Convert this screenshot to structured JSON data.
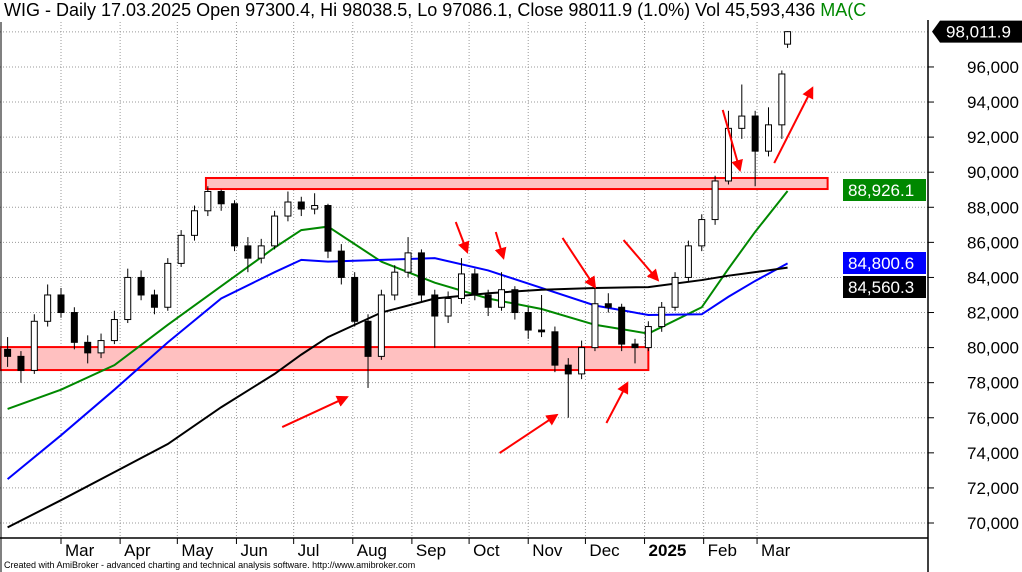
{
  "header": {
    "title": "WIG - Daily 17.03.2025 Open 97300.4, Hi 98038.5, Lo 97086.1, Close 98011.9 (1.0%) Vol 45,593,436",
    "ma_label": "MA(C"
  },
  "footer": "Created with AmiBroker - advanced charting and technical analysis software. http://www.amibroker.com",
  "chart_data": {
    "type": "candlestick",
    "symbol": "WIG",
    "ylim": [
      69150,
      99800
    ],
    "yticks": [
      "70,000",
      "72,000",
      "74,000",
      "76,000",
      "78,000",
      "80,000",
      "82,000",
      "84,000",
      "86,000",
      "88,000",
      "90,000",
      "92,000",
      "94,000",
      "96,000"
    ],
    "ytick_values": [
      70000,
      72000,
      74000,
      76000,
      78000,
      80000,
      82000,
      84000,
      86000,
      88000,
      90000,
      92000,
      94000,
      96000
    ],
    "xticks": [
      {
        "label": "Mar",
        "date": "2024-03-01"
      },
      {
        "label": "Apr",
        "date": "2024-04-01"
      },
      {
        "label": "May",
        "date": "2024-05-01"
      },
      {
        "label": "Jun",
        "date": "2024-06-01"
      },
      {
        "label": "Jul",
        "date": "2024-07-01"
      },
      {
        "label": "Aug",
        "date": "2024-08-01"
      },
      {
        "label": "Sep",
        "date": "2024-09-01"
      },
      {
        "label": "Oct",
        "date": "2024-10-01"
      },
      {
        "label": "Nov",
        "date": "2024-11-01"
      },
      {
        "label": "Dec",
        "date": "2024-12-01"
      },
      {
        "label": "2025",
        "date": "2025-01-01",
        "bold": true
      },
      {
        "label": "Feb",
        "date": "2025-02-01"
      },
      {
        "label": "Mar",
        "date": "2025-03-01"
      }
    ],
    "grid": true,
    "candles": [
      [
        "2024-02-02",
        79900,
        80600,
        78900,
        79500
      ],
      [
        "2024-02-09",
        79500,
        79800,
        78000,
        78700
      ],
      [
        "2024-02-16",
        78700,
        81900,
        78500,
        81500
      ],
      [
        "2024-02-23",
        81500,
        83600,
        81200,
        83000
      ],
      [
        "2024-03-01",
        83000,
        83400,
        81700,
        82000
      ],
      [
        "2024-03-08",
        82000,
        82300,
        79900,
        80300
      ],
      [
        "2024-03-15",
        80300,
        80700,
        79100,
        79700
      ],
      [
        "2024-03-22",
        79700,
        80800,
        79400,
        80400
      ],
      [
        "2024-03-29",
        80400,
        82100,
        80200,
        81600
      ],
      [
        "2024-04-05",
        81600,
        84500,
        81400,
        84000
      ],
      [
        "2024-04-12",
        84000,
        84400,
        82700,
        83000
      ],
      [
        "2024-04-19",
        83000,
        83300,
        81900,
        82300
      ],
      [
        "2024-04-26",
        82300,
        85100,
        82100,
        84800
      ],
      [
        "2024-05-03",
        84800,
        86700,
        84600,
        86400
      ],
      [
        "2024-05-10",
        86400,
        88100,
        86100,
        87800
      ],
      [
        "2024-05-17",
        87800,
        89200,
        87500,
        88900
      ],
      [
        "2024-05-24",
        88900,
        89000,
        87800,
        88200
      ],
      [
        "2024-05-31",
        88200,
        88400,
        85500,
        85800
      ],
      [
        "2024-06-07",
        85800,
        86300,
        84300,
        85100
      ],
      [
        "2024-06-14",
        85100,
        86200,
        84800,
        85800
      ],
      [
        "2024-06-21",
        85800,
        87800,
        85600,
        87500
      ],
      [
        "2024-06-28",
        87500,
        88900,
        87200,
        88300
      ],
      [
        "2024-07-05",
        88300,
        88600,
        87500,
        87900
      ],
      [
        "2024-07-12",
        87900,
        88800,
        87600,
        88100
      ],
      [
        "2024-07-19",
        88100,
        88200,
        85100,
        85500
      ],
      [
        "2024-07-26",
        85500,
        85900,
        83600,
        84000
      ],
      [
        "2024-08-02",
        84000,
        84300,
        81200,
        81500
      ],
      [
        "2024-08-09",
        81500,
        81900,
        77700,
        79500
      ],
      [
        "2024-08-16",
        79500,
        83300,
        79300,
        83000
      ],
      [
        "2024-08-23",
        83000,
        84700,
        82700,
        84300
      ],
      [
        "2024-08-30",
        84300,
        86300,
        84000,
        85400
      ],
      [
        "2024-09-06",
        85400,
        85600,
        82600,
        83000
      ],
      [
        "2024-09-13",
        83000,
        83300,
        80000,
        81800
      ],
      [
        "2024-09-20",
        81800,
        83200,
        81400,
        82800
      ],
      [
        "2024-09-27",
        82800,
        85100,
        82500,
        84200
      ],
      [
        "2024-10-04",
        84200,
        84500,
        82700,
        83000
      ],
      [
        "2024-10-11",
        83000,
        83300,
        81800,
        82300
      ],
      [
        "2024-10-18",
        82300,
        84300,
        82100,
        83300
      ],
      [
        "2024-10-25",
        83300,
        83500,
        81600,
        82000
      ],
      [
        "2024-11-01",
        82000,
        82300,
        80500,
        81000
      ],
      [
        "2024-11-08",
        81000,
        83000,
        80600,
        80900
      ],
      [
        "2024-11-15",
        80900,
        81200,
        78600,
        79000
      ],
      [
        "2024-11-22",
        79000,
        79400,
        76000,
        78500
      ],
      [
        "2024-11-29",
        78500,
        80400,
        78200,
        80000
      ],
      [
        "2024-12-06",
        80000,
        83400,
        79800,
        82500
      ],
      [
        "2024-12-13",
        82500,
        83100,
        82000,
        82300
      ],
      [
        "2024-12-20",
        82300,
        82500,
        79800,
        80200
      ],
      [
        "2024-12-27",
        80200,
        80500,
        79100,
        80000
      ],
      [
        "2025-01-03",
        80000,
        81500,
        79800,
        81200
      ],
      [
        "2025-01-10",
        81200,
        82600,
        80900,
        82300
      ],
      [
        "2025-01-17",
        82300,
        84300,
        82100,
        84000
      ],
      [
        "2025-01-24",
        84000,
        86100,
        83800,
        85800
      ],
      [
        "2025-01-31",
        85800,
        87600,
        85500,
        87300
      ],
      [
        "2025-02-07",
        87300,
        89800,
        87000,
        89500
      ],
      [
        "2025-02-14",
        89500,
        93500,
        89300,
        92500
      ],
      [
        "2025-02-21",
        92500,
        95000,
        91900,
        93200
      ],
      [
        "2025-02-28",
        93200,
        93500,
        89200,
        91200
      ],
      [
        "2025-03-07",
        91200,
        93700,
        90900,
        92700
      ],
      [
        "2025-03-14",
        92700,
        95800,
        91900,
        95600
      ],
      [
        "2025-03-17",
        97300.4,
        98038.5,
        97086.1,
        98011.9
      ]
    ],
    "moving_averages": [
      {
        "color": "#008800",
        "last_value": "88,926.1",
        "points": [
          [
            "2024-02-02",
            76500
          ],
          [
            "2024-03-01",
            77600
          ],
          [
            "2024-03-29",
            79000
          ],
          [
            "2024-04-26",
            81300
          ],
          [
            "2024-05-24",
            83500
          ],
          [
            "2024-06-21",
            85700
          ],
          [
            "2024-07-05",
            86700
          ],
          [
            "2024-07-19",
            86900
          ],
          [
            "2024-08-16",
            84900
          ],
          [
            "2024-09-13",
            83700
          ],
          [
            "2024-10-11",
            82800
          ],
          [
            "2024-11-08",
            82200
          ],
          [
            "2024-12-06",
            81300
          ],
          [
            "2025-01-03",
            80800
          ],
          [
            "2025-01-31",
            82300
          ],
          [
            "2025-02-14",
            84500
          ],
          [
            "2025-02-28",
            86600
          ],
          [
            "2025-03-17",
            88926.1
          ]
        ]
      },
      {
        "color": "#0000ff",
        "last_value": "84,800.6",
        "points": [
          [
            "2024-02-02",
            72500
          ],
          [
            "2024-03-01",
            75000
          ],
          [
            "2024-03-29",
            77600
          ],
          [
            "2024-04-26",
            80300
          ],
          [
            "2024-05-24",
            82800
          ],
          [
            "2024-06-21",
            84300
          ],
          [
            "2024-07-05",
            85000
          ],
          [
            "2024-07-19",
            84900
          ],
          [
            "2024-08-16",
            85000
          ],
          [
            "2024-09-13",
            85100
          ],
          [
            "2024-10-11",
            84400
          ],
          [
            "2024-11-08",
            83400
          ],
          [
            "2024-12-06",
            82400
          ],
          [
            "2025-01-03",
            81860
          ],
          [
            "2025-01-31",
            81900
          ],
          [
            "2025-02-14",
            82900
          ],
          [
            "2025-02-28",
            83800
          ],
          [
            "2025-03-17",
            84800.6
          ]
        ]
      },
      {
        "color": "#000000",
        "last_value": "84,560.3",
        "points": [
          [
            "2024-02-02",
            69750
          ],
          [
            "2024-03-01",
            71300
          ],
          [
            "2024-03-29",
            72900
          ],
          [
            "2024-04-26",
            74500
          ],
          [
            "2024-05-24",
            76600
          ],
          [
            "2024-06-21",
            78500
          ],
          [
            "2024-07-05",
            79600
          ],
          [
            "2024-07-19",
            80600
          ],
          [
            "2024-08-16",
            82000
          ],
          [
            "2024-09-13",
            82800
          ],
          [
            "2024-10-11",
            83100
          ],
          [
            "2024-11-08",
            83300
          ],
          [
            "2024-12-06",
            83400
          ],
          [
            "2025-01-03",
            83450
          ],
          [
            "2025-01-31",
            83850
          ],
          [
            "2025-02-14",
            84100
          ],
          [
            "2025-02-28",
            84300
          ],
          [
            "2025-03-17",
            84560.3
          ]
        ]
      }
    ],
    "last_price_tag": {
      "value": "98,011.9",
      "price": 98011.9,
      "color": "#000000"
    },
    "zones": [
      {
        "from": "2024-05-16",
        "to": "2025-04-07",
        "low": 89040,
        "high": 89670,
        "color": "#ffc0c0",
        "border": "#ff0000"
      },
      {
        "from": "2024-01-29",
        "to": "2025-01-03",
        "low": 78720,
        "high": 80030,
        "color": "#ffc0c0",
        "border": "#ff0000"
      }
    ],
    "arrows": [
      {
        "from": [
          "2024-06-25",
          75470
        ],
        "to": [
          "2024-07-29",
          77180
        ]
      },
      {
        "from": [
          "2024-10-17",
          73990
        ],
        "to": [
          "2024-11-16",
          76160
        ]
      },
      {
        "from": [
          "2024-12-12",
          75700
        ],
        "to": [
          "2024-12-23",
          77980
        ]
      },
      {
        "from": [
          "2024-09-24",
          87160
        ],
        "to": [
          "2024-09-30",
          85450
        ]
      },
      {
        "from": [
          "2024-10-15",
          86590
        ],
        "to": [
          "2024-10-19",
          85110
        ]
      },
      {
        "from": [
          "2024-11-19",
          86250
        ],
        "to": [
          "2024-12-06",
          83450
        ]
      },
      {
        "from": [
          "2024-12-21",
          86130
        ],
        "to": [
          "2025-01-08",
          83850
        ]
      },
      {
        "from": [
          "2025-02-11",
          93550
        ],
        "to": [
          "2025-02-20",
          90120
        ]
      },
      {
        "from": [
          "2025-03-10",
          90520
        ],
        "to": [
          "2025-03-30",
          94800
        ]
      }
    ],
    "arrow_color": "#ff0000"
  }
}
